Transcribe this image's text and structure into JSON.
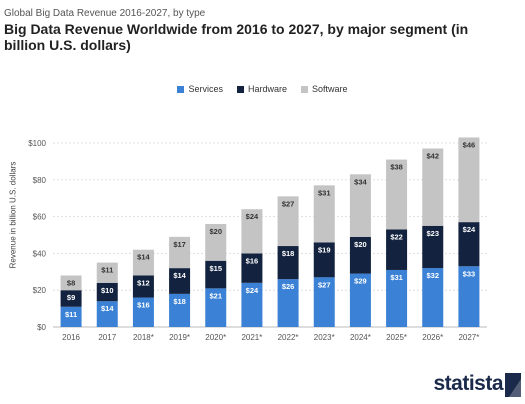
{
  "header": {
    "subtitle": "Global Big Data Revenue 2016-2027, by type",
    "title": "Big Data Revenue Worldwide from 2016 to 2027, by major segment (in billion U.S. dollars)"
  },
  "brand": {
    "logo_text": "statista"
  },
  "colors": {
    "services": "#3b82d6",
    "hardware": "#13233f",
    "software": "#c4c4c4",
    "brand": "#1b2a4a"
  },
  "chart_data": {
    "type": "bar",
    "stacked": true,
    "categories": [
      "2016",
      "2017",
      "2018*",
      "2019*",
      "2020*",
      "2021*",
      "2022*",
      "2023*",
      "2024*",
      "2025*",
      "2026*",
      "2027*"
    ],
    "series": [
      {
        "name": "Services",
        "values": [
          11,
          14,
          16,
          18,
          21,
          24,
          26,
          27,
          29,
          31,
          32,
          33
        ]
      },
      {
        "name": "Hardware",
        "values": [
          9,
          10,
          12,
          14,
          15,
          16,
          18,
          19,
          20,
          22,
          23,
          24
        ]
      },
      {
        "name": "Software",
        "values": [
          8,
          11,
          14,
          17,
          20,
          24,
          27,
          31,
          34,
          38,
          42,
          46
        ]
      }
    ],
    "data_labels": [
      [
        "$11",
        "$14",
        "$16",
        "$18",
        "$21",
        "$24",
        "$26",
        "$27",
        "$29",
        "$31",
        "$32",
        "$33"
      ],
      [
        "$9",
        "$10",
        "$12",
        "$14",
        "$15",
        "$16",
        "$18",
        "$19",
        "$20",
        "$22",
        "$23",
        "$24"
      ],
      [
        "$8",
        "$11",
        "$14",
        "$17",
        "$20",
        "$24",
        "$27",
        "$31",
        "$34",
        "$38",
        "$42",
        "$46"
      ]
    ],
    "ylabel": "Revenue in billion U.S. dollars",
    "xlabel": "",
    "ylim": [
      0,
      100
    ],
    "yticks": [
      0,
      20,
      40,
      60,
      80,
      100
    ],
    "ytick_labels": [
      "$0",
      "$20",
      "$40",
      "$60",
      "$80",
      "$100"
    ],
    "grid": "horizontal",
    "legend": "top"
  }
}
